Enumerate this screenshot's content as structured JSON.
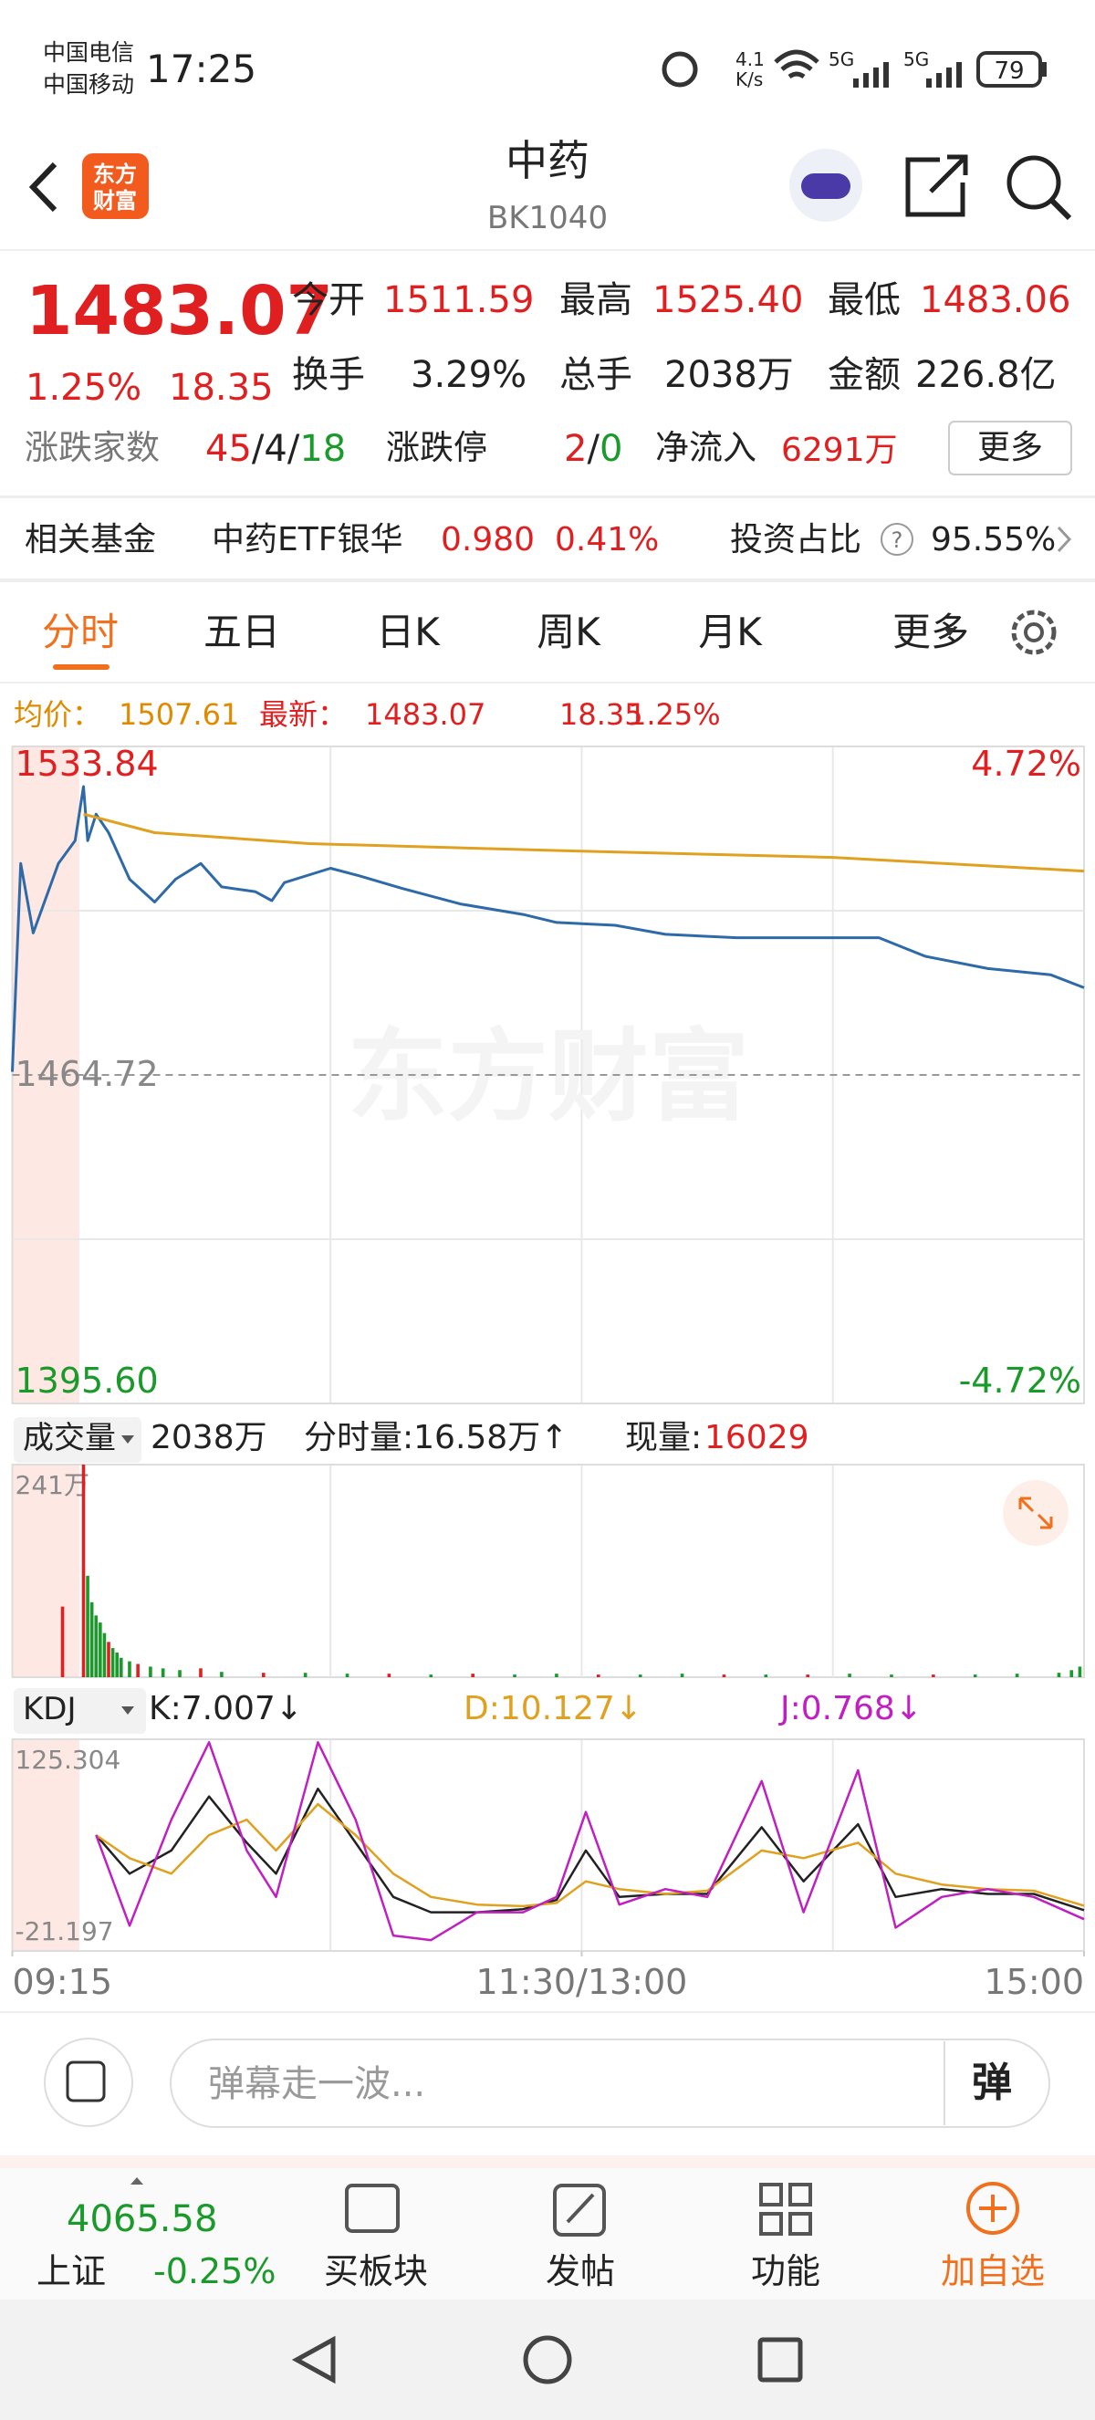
{
  "status_bar": {
    "carrier1": "中国电信",
    "carrier2": "中国移动",
    "time": "17:25",
    "net_speed_value": "4.1",
    "net_speed_unit": "K/s",
    "signal1": "5G",
    "signal2": "5G",
    "battery": "79"
  },
  "header": {
    "logo_line1": "东方",
    "logo_line2": "财富",
    "title": "中药",
    "code": "BK1040"
  },
  "quote": {
    "price": "1483.07",
    "change_pct": "1.25%",
    "change": "18.35",
    "stats": [
      {
        "label": "今开",
        "value": "1511.59"
      },
      {
        "label": "最高",
        "value": "1525.40"
      },
      {
        "label": "最低",
        "value": "1483.06"
      },
      {
        "label": "换手",
        "value": "3.29%"
      },
      {
        "label": "总手",
        "value": "2038万"
      },
      {
        "label": "金额",
        "value": "226.8亿"
      }
    ],
    "breadth_label": "涨跌家数",
    "breadth_up": "45",
    "breadth_flat": "4",
    "breadth_down": "18",
    "separator": "/",
    "limit_label": "涨跌停",
    "limit_up": "2",
    "limit_down": "0",
    "inflow_label": "净流入",
    "inflow": "6291万",
    "more": "更多"
  },
  "fund": {
    "label": "相关基金",
    "name": "中药ETF银华",
    "price": "0.980",
    "change": "0.41%",
    "ratio_label": "投资占比",
    "help": "?",
    "ratio": "95.55%"
  },
  "tabs": [
    "分时",
    "五日",
    "日K",
    "周K",
    "月K",
    "更多"
  ],
  "info_line": {
    "avg_label": "均价：",
    "avg": "1507.61",
    "latest_label": "最新：",
    "latest": "1483.07",
    "change": "18.35",
    "change_pct": "1.25%"
  },
  "volume_header": {
    "selector": "成交量",
    "total": "2038万",
    "tick_volume": "分时量:16.58万↑",
    "current_label": "现量:",
    "current": "16029"
  },
  "kdj_header": {
    "selector": "KDJ",
    "k": "K:7.007↓",
    "d": "D:10.127↓",
    "j": "J:0.768↓"
  },
  "chart_data": [
    {
      "type": "line",
      "watermark": "东方财富",
      "xlim": [
        0,
        256
      ],
      "ylim": [
        1395.6,
        1533.84
      ],
      "yticks": [
        1533.84,
        1464.72,
        {
          "value": 1395.6,
          "label": "1395.60"
        }
      ],
      "y2lim": [
        -4.72,
        4.72
      ],
      "y2ticks": [
        {
          "value": 4.72,
          "label": "4.72%"
        },
        {
          "value": -4.72,
          "label": "-4.72%"
        }
      ],
      "series": [
        {
          "color": "#2f6aa8",
          "x": [
            0,
            2,
            5,
            11,
            15,
            17,
            18,
            20,
            23,
            28,
            34,
            39,
            45,
            50,
            58,
            62,
            65,
            76,
            83,
            93,
            107,
            122,
            130,
            144,
            156,
            173,
            196,
            207,
            218,
            233,
            248,
            256
          ],
          "values": [
            1465.37,
            1509.2,
            1494.6,
            1509.2,
            1514.0,
            1525.4,
            1514.0,
            1519.6,
            1515.7,
            1505.9,
            1501.1,
            1505.9,
            1509.2,
            1504.3,
            1503.3,
            1501.4,
            1505.2,
            1508.2,
            1506.6,
            1504.0,
            1500.7,
            1498.5,
            1496.8,
            1496.2,
            1494.3,
            1493.6,
            1493.6,
            1493.6,
            1489.7,
            1487.1,
            1485.8,
            1483.07
          ]
        },
        {
          "color": "#e0a020",
          "x": [
            17,
            34,
            71,
            136,
            196,
            256
          ],
          "values": [
            1519.6,
            1515.7,
            1513.4,
            1511.8,
            1510.5,
            1507.61
          ]
        }
      ]
    },
    {
      "type": "bar",
      "xlim": [
        0,
        256
      ],
      "ylim": [
        0,
        241
      ],
      "yticks": [
        {
          "value": 241,
          "label": "241万"
        }
      ],
      "x": [
        12,
        17,
        18,
        19,
        20,
        21,
        22,
        23,
        24,
        25,
        26,
        28,
        30,
        33,
        36,
        40,
        45,
        50,
        60,
        70,
        80,
        90,
        100,
        110,
        120,
        130,
        140,
        150,
        160,
        170,
        180,
        190,
        200,
        210,
        220,
        230,
        240,
        250,
        253,
        255
      ],
      "values": [
        80,
        241,
        115,
        85,
        70,
        62,
        50,
        40,
        33,
        28,
        22,
        18,
        15,
        12,
        10,
        8,
        10,
        6,
        5,
        5,
        4,
        4,
        3,
        4,
        3,
        4,
        3,
        3,
        4,
        3,
        3,
        3,
        4,
        3,
        3,
        3,
        4,
        5,
        8,
        12
      ],
      "bar_colors": [
        "#e02020",
        "#e02020",
        "#1a9a2a",
        "#1a9a2a",
        "#1a9a2a",
        "#1a9a2a",
        "#1a9a2a",
        "#e02020",
        "#1a9a2a",
        "#1a9a2a",
        "#1a9a2a",
        "#1a9a2a",
        "#e02020",
        "#1a9a2a",
        "#1a9a2a",
        "#1a9a2a",
        "#e02020",
        "#1a9a2a",
        "#e02020",
        "#1a9a2a",
        "#1a9a2a",
        "#e02020",
        "#1a9a2a",
        "#e02020",
        "#1a9a2a",
        "#1a9a2a",
        "#e02020",
        "#1a9a2a",
        "#1a9a2a",
        "#e02020",
        "#1a9a2a",
        "#e02020",
        "#1a9a2a",
        "#1a9a2a",
        "#e02020",
        "#1a9a2a",
        "#1a9a2a",
        "#1a9a2a",
        "#1a9a2a",
        "#1a9a2a"
      ]
    },
    {
      "type": "line",
      "xlim": [
        0,
        256
      ],
      "ylim": [
        -21.197,
        125.304
      ],
      "yticks": [
        125.304,
        -21.197
      ],
      "xticks": [
        {
          "value": 0,
          "label": "09:15"
        },
        {
          "value": 136,
          "label": "11:30/13:00"
        },
        {
          "value": 256,
          "label": "15:00"
        }
      ],
      "x": [
        20,
        28,
        38,
        47,
        56,
        63,
        73,
        82,
        91,
        100,
        111,
        122,
        130,
        137,
        145,
        156,
        166,
        179,
        189,
        202,
        211,
        222,
        233,
        244,
        256
      ],
      "series": [
        {
          "color": "#222222",
          "values": [
            59,
            32.3,
            48.3,
            85.7,
            53.7,
            32.3,
            91.1,
            53.7,
            16.2,
            5.6,
            5.6,
            7.7,
            14.1,
            48.3,
            16.2,
            18.3,
            18.3,
            64.4,
            27,
            66.5,
            16.2,
            21.6,
            18.3,
            18.3,
            7.007
          ]
        },
        {
          "color": "#e0a020",
          "values": [
            59,
            43,
            32.3,
            59,
            69.7,
            48.3,
            80.4,
            59,
            32.3,
            16.2,
            10.9,
            9.8,
            12,
            27,
            21.6,
            18.3,
            20.5,
            48.3,
            43,
            53.7,
            32.3,
            24.8,
            21.6,
            20.5,
            10.127
          ]
        },
        {
          "color": "#c020c0",
          "values": [
            59,
            -3.7,
            69.7,
            123.2,
            48.3,
            16.2,
            123.2,
            69.7,
            -10.5,
            -13.7,
            5.6,
            5.6,
            16.2,
            75,
            10.9,
            21.6,
            16.2,
            96.4,
            5.6,
            103.9,
            -5.1,
            16.2,
            21.6,
            16.2,
            0.768
          ]
        }
      ]
    }
  ],
  "comment": {
    "placeholder": "弹幕走一波...",
    "button": "弹"
  },
  "bottom_nav": {
    "index_value": "4065.58",
    "index_name": "上证",
    "index_change": "-0.25%",
    "items": [
      "买板块",
      "发帖",
      "功能",
      "加自选"
    ]
  }
}
